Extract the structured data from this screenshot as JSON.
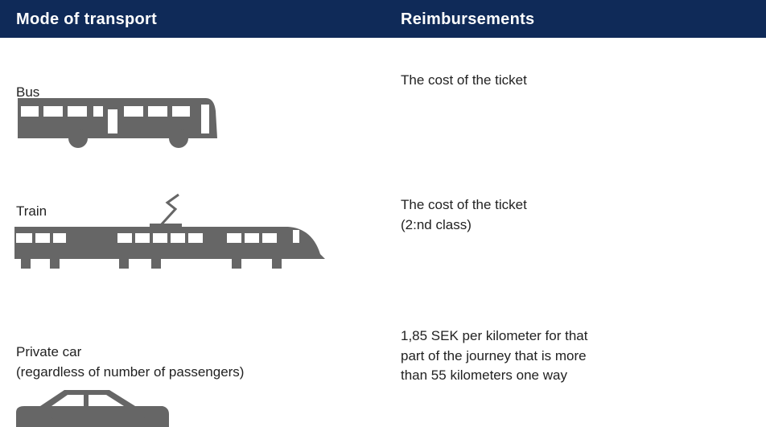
{
  "table": {
    "header": [
      "Mode of transport",
      "Reimbursements"
    ],
    "rows": [
      {
        "mode": [
          "Bus"
        ],
        "reimbursement": [
          "The cost of the ticket"
        ]
      },
      {
        "mode": [
          "Train"
        ],
        "reimbursement": [
          "The cost of the ticket",
          "(2:nd class)"
        ]
      },
      {
        "mode": [
          "Private car",
          "(regardless of number of passengers)"
        ],
        "reimbursement": [
          "1,85 SEK per kilometer for that",
          "part of the journey that is more",
          "than 55 kilometers one way"
        ]
      }
    ]
  }
}
